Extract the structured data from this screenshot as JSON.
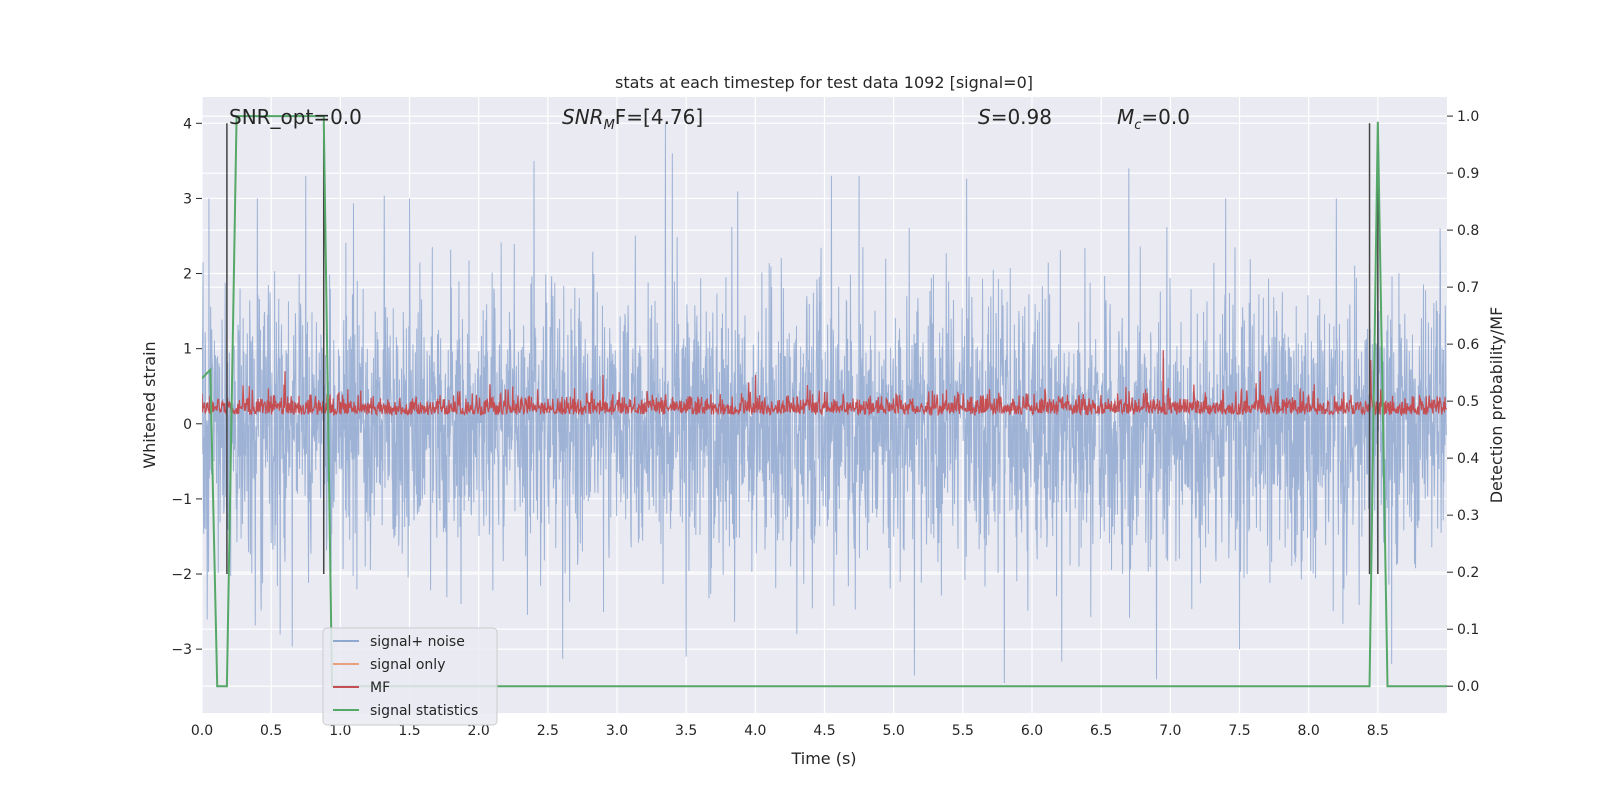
{
  "chart_data": {
    "type": "line",
    "title": "stats at each timestep for test data 1092 [signal=0]",
    "xlabel": "Time (s)",
    "ylabel": "Whitened strain",
    "ylabel_right": "Detection probability/MF",
    "xlim": [
      0.0,
      9.0
    ],
    "ylim": [
      -3.85,
      4.35
    ],
    "ylim_right": [
      -0.047,
      1.0335
    ],
    "x_ticks": [
      "0.0",
      "0.5",
      "1.0",
      "1.5",
      "2.0",
      "2.5",
      "3.0",
      "3.5",
      "4.0",
      "4.5",
      "5.0",
      "5.5",
      "6.0",
      "6.5",
      "7.0",
      "7.5",
      "8.0",
      "8.5"
    ],
    "y_ticks": [
      "4",
      "3",
      "2",
      "1",
      "0",
      "−1",
      "−2",
      "−3"
    ],
    "y_ticks_right": [
      "1.0",
      "0.9",
      "0.8",
      "0.7",
      "0.6",
      "0.5",
      "0.4",
      "0.3",
      "0.2",
      "0.1",
      "0.0"
    ],
    "grid": true,
    "legend_position": "lower-left",
    "annotations": {
      "snr_opt": "SNR_opt=0.0",
      "snr_mf_base": "SNR",
      "snr_mf_sub": "M",
      "snr_mf_rest": "F=[4.76]",
      "s_stat": "=0.98",
      "s_symbol": "S",
      "mc_symbol": "M",
      "mc_sub": "c",
      "mc_rest": "=0.0"
    },
    "vertical_markers": [
      0.18,
      0.88,
      8.44,
      8.5
    ],
    "series": [
      {
        "name": "signal+ noise",
        "color": "#8fa8d0",
        "axis": "left",
        "summary": {
          "mean": 0.0,
          "std": 1.0,
          "max": 4.0,
          "min": -3.5
        },
        "spikes": [
          [
            0.05,
            3.0
          ],
          [
            0.4,
            3.0
          ],
          [
            0.75,
            3.3
          ],
          [
            1.5,
            3.0
          ],
          [
            2.4,
            3.5
          ],
          [
            3.35,
            4.0
          ],
          [
            3.4,
            3.6
          ],
          [
            4.55,
            3.3
          ],
          [
            4.75,
            3.3
          ],
          [
            6.7,
            3.4
          ],
          [
            7.4,
            3.0
          ],
          [
            8.2,
            3.0
          ],
          [
            8.6,
            3.0
          ],
          [
            8.95,
            2.6
          ],
          [
            3.5,
            -3.1
          ],
          [
            4.3,
            -2.8
          ],
          [
            5.15,
            -3.35
          ],
          [
            5.8,
            -3.45
          ],
          [
            6.9,
            -3.4
          ],
          [
            7.5,
            -3.0
          ],
          [
            8.6,
            -3.2
          ]
        ]
      },
      {
        "name": "signal only",
        "color": "#e8a07f",
        "axis": "left",
        "values_note": "zero signal"
      },
      {
        "name": "MF",
        "color": "#c44e52",
        "axis": "left",
        "summary": {
          "mean": 0.18,
          "std": 0.13,
          "max": 1.0,
          "min": -0.1
        },
        "spikes": [
          [
            6.95,
            0.98
          ],
          [
            8.45,
            0.85
          ],
          [
            0.6,
            0.7
          ],
          [
            2.9,
            0.65
          ],
          [
            4.0,
            0.65
          ],
          [
            7.65,
            0.7
          ]
        ]
      },
      {
        "name": "signal statistics",
        "color": "#55a868",
        "axis": "right",
        "x": [
          0.0,
          0.06,
          0.11,
          0.18,
          0.25,
          0.88,
          0.94,
          8.44,
          8.5,
          8.57,
          8.62,
          9.0
        ],
        "y": [
          0.54,
          0.555,
          0.0,
          0.0,
          1.0,
          1.0,
          0.0,
          0.0,
          0.99,
          0.0,
          0.0,
          0.0
        ]
      }
    ]
  }
}
